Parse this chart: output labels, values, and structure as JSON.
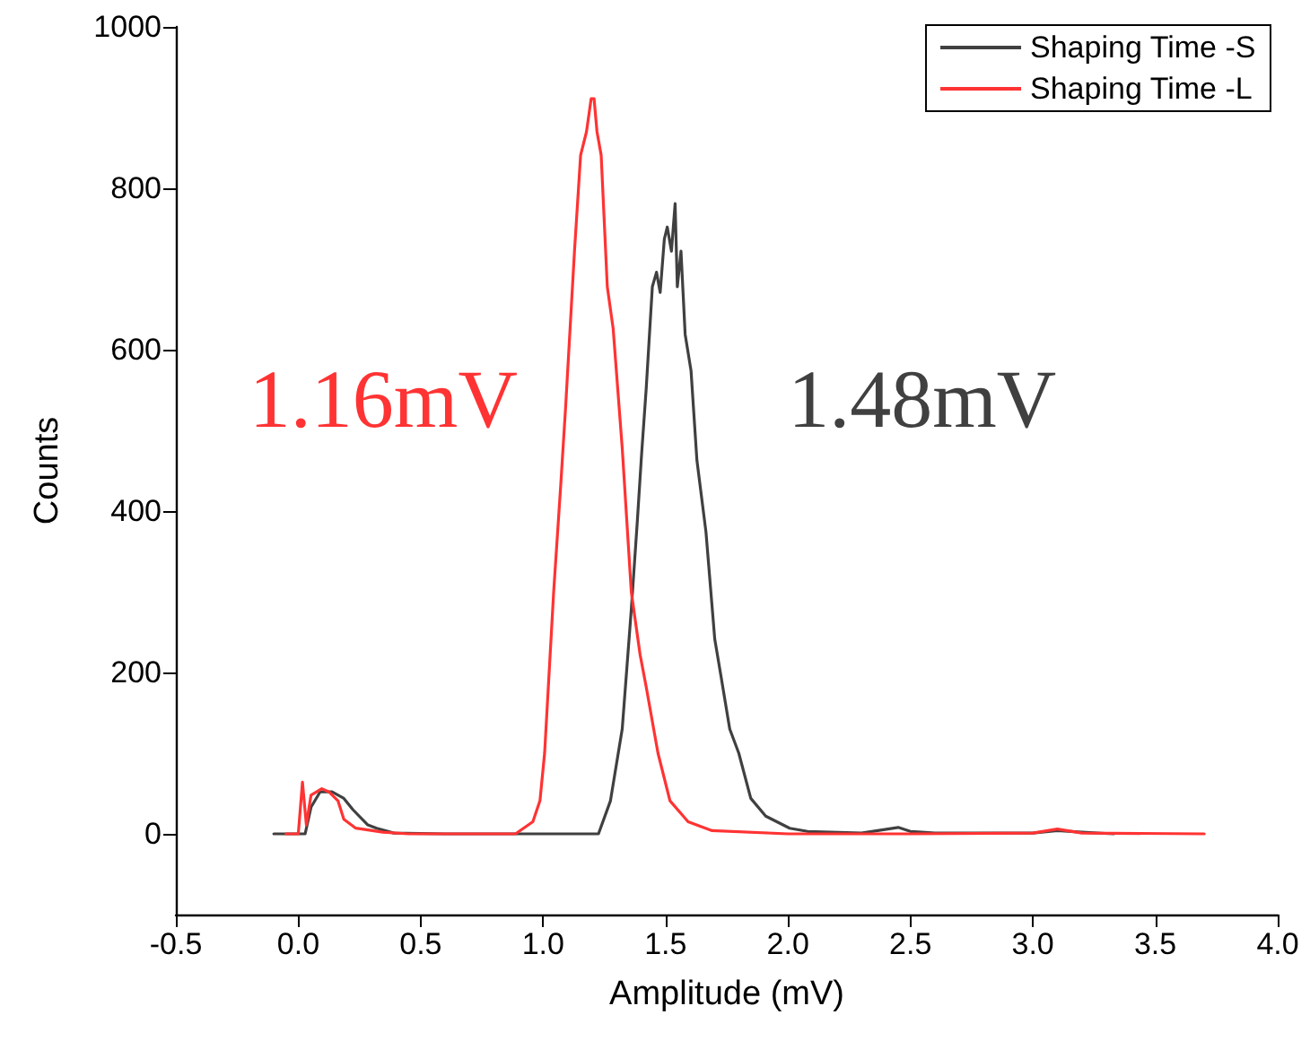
{
  "chart_data": {
    "type": "line",
    "xlabel": "Amplitude (mV)",
    "ylabel": "Counts",
    "xlim": [
      -0.5,
      4.0
    ],
    "xticks": [
      {
        "value": -0.5,
        "label": "-0.5"
      },
      {
        "value": 0,
        "label": "0.0"
      },
      {
        "value": 0.5,
        "label": "0.5"
      },
      {
        "value": 1,
        "label": "1.0"
      },
      {
        "value": 1.5,
        "label": "1.5"
      },
      {
        "value": 2,
        "label": "2.0"
      },
      {
        "value": 2.5,
        "label": "2.5"
      },
      {
        "value": 3,
        "label": "3.0"
      },
      {
        "value": 3.5,
        "label": "3.5"
      },
      {
        "value": 4,
        "label": "4.0"
      }
    ],
    "ylim": [
      -100,
      1000
    ],
    "yticks": [
      0,
      200,
      400,
      600,
      800,
      1000
    ],
    "grid": false,
    "legend": "top right",
    "marker": "none",
    "line_style": "solid",
    "annotations": [
      "1.16mV",
      "1.48mV"
    ],
    "series": [
      {
        "name": "Shaping Time -S",
        "color": "#404040",
        "x": [
          -0.1,
          0.0,
          0.028,
          0.052,
          0.089,
          0.138,
          0.186,
          0.223,
          0.284,
          0.32,
          0.39,
          0.6,
          1.0,
          1.226,
          1.275,
          1.323,
          1.36,
          1.385,
          1.402,
          1.421,
          1.446,
          1.463,
          1.478,
          1.495,
          1.507,
          1.524,
          1.539,
          1.548,
          1.563,
          1.58,
          1.604,
          1.628,
          1.665,
          1.701,
          1.726,
          1.762,
          1.799,
          1.848,
          1.909,
          2.007,
          2.08,
          2.3,
          2.45,
          2.5,
          2.6,
          3.0,
          3.1,
          3.2,
          3.33
        ],
        "values": [
          0,
          0,
          0,
          33,
          52,
          52,
          44,
          30,
          11,
          7,
          1,
          0,
          0,
          0,
          41,
          130,
          278,
          389,
          470,
          552,
          678,
          696,
          671,
          737,
          752,
          722,
          781,
          678,
          722,
          619,
          574,
          463,
          374,
          241,
          196,
          130,
          100,
          44,
          22,
          7,
          3,
          1,
          8,
          3,
          1,
          1,
          4,
          2,
          0
        ]
      },
      {
        "name": "Shaping Time -L",
        "color": "#ff3333",
        "x": [
          -0.05,
          0.0,
          0.017,
          0.033,
          0.052,
          0.096,
          0.125,
          0.162,
          0.186,
          0.235,
          0.345,
          0.45,
          0.887,
          0.958,
          0.987,
          1.006,
          1.043,
          1.072,
          1.092,
          1.128,
          1.153,
          1.177,
          1.196,
          1.208,
          1.22,
          1.237,
          1.262,
          1.286,
          1.323,
          1.36,
          1.396,
          1.421,
          1.469,
          1.518,
          1.592,
          1.69,
          2.0,
          2.5,
          3.0,
          3.1,
          3.2,
          3.7
        ],
        "values": [
          0,
          0,
          64,
          11,
          48,
          56,
          52,
          41,
          18,
          7,
          2,
          0,
          0,
          15,
          41,
          100,
          300,
          433,
          530,
          722,
          841,
          870,
          911,
          911,
          870,
          841,
          678,
          626,
          478,
          300,
          222,
          182,
          100,
          41,
          15,
          4,
          0,
          0,
          1,
          6,
          1,
          0
        ]
      }
    ]
  }
}
